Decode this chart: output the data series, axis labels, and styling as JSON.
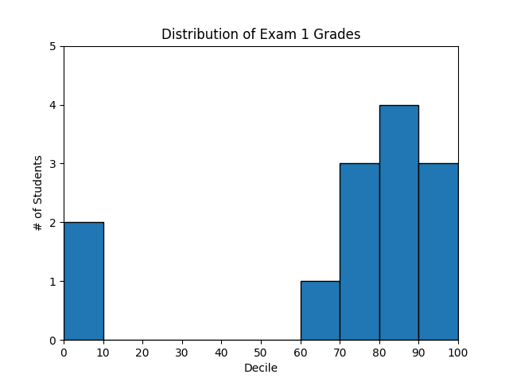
{
  "title": "Distribution of Exam 1 Grades",
  "xlabel": "Decile",
  "ylabel": "# of Students",
  "bin_edges": [
    0,
    10,
    20,
    30,
    40,
    50,
    60,
    70,
    80,
    90,
    100
  ],
  "counts": [
    2,
    0,
    0,
    0,
    0,
    0,
    1,
    3,
    4,
    3
  ],
  "bar_color": "#2077b4",
  "bar_edgecolor": "#000000",
  "xlim": [
    0,
    100
  ],
  "ylim": [
    0,
    5
  ],
  "xticks": [
    0,
    10,
    20,
    30,
    40,
    50,
    60,
    70,
    80,
    90,
    100
  ],
  "yticks": [
    0,
    1,
    2,
    3,
    4,
    5
  ],
  "figsize": [
    6.4,
    4.8
  ],
  "dpi": 100
}
